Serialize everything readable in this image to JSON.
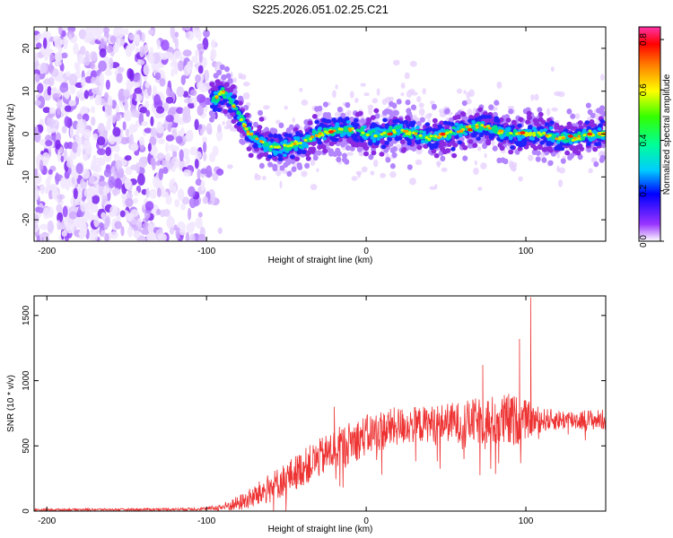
{
  "figure_title": "S225.2026.051.02.25.C21",
  "chart_data": [
    {
      "type": "heatmap",
      "title": "S225.2026.051.02.25.C21",
      "xlabel": "Height of straight line (km)",
      "ylabel": "Frequency (Hz)",
      "xlim": [
        -208,
        150
      ],
      "ylim": [
        -25,
        25
      ],
      "xticks": [
        -200,
        -100,
        0,
        100
      ],
      "xtick_labels": [
        "-200",
        "-100",
        "0",
        "100"
      ],
      "yticks": [
        -20,
        -10,
        0,
        10,
        20
      ],
      "ytick_labels": [
        "-20",
        "-10",
        "0",
        "10",
        "20"
      ],
      "grid": false,
      "colorbar": {
        "label": "Normalized spectral amplitude",
        "range": [
          0,
          0.85
        ],
        "ticks": [
          0.0,
          0.2,
          0.4,
          0.6,
          0.8
        ],
        "tick_labels": [
          "0.0",
          "0.2",
          "0.4",
          "0.6",
          "0.8"
        ],
        "colormap": [
          "#ffffff",
          "#9933ff",
          "#0000ff",
          "#00ffff",
          "#00ff00",
          "#ffff00",
          "#ff8000",
          "#ff0000",
          "#ff33aa"
        ]
      },
      "ridge": {
        "x": [
          -95,
          -90,
          -85,
          -80,
          -75,
          -70,
          -60,
          -50,
          -40,
          -30,
          -20,
          -10,
          0,
          10,
          20,
          30,
          40,
          50,
          60,
          70,
          80,
          90,
          100,
          110,
          120,
          130,
          140,
          150
        ],
        "freq": [
          8,
          10,
          8,
          5,
          1,
          -1,
          -3,
          -3,
          -2,
          0,
          1,
          1,
          0,
          0,
          1,
          0,
          -1,
          0,
          1,
          2,
          1,
          0,
          0,
          0,
          -1,
          -1,
          0,
          0
        ]
      },
      "peak_amplitude": 0.85
    },
    {
      "type": "line",
      "xlabel": "Height of straight line (km)",
      "ylabel": "SNR (10 * v/v)",
      "xlim": [
        -208,
        150
      ],
      "ylim": [
        0,
        1650
      ],
      "xticks": [
        -200,
        -100,
        0,
        100
      ],
      "xtick_labels": [
        "-200",
        "-100",
        "0",
        "100"
      ],
      "yticks": [
        0,
        500,
        1000,
        1500
      ],
      "ytick_labels": [
        "0",
        "500",
        "1000",
        "1500"
      ],
      "grid": false,
      "series_color": "#ee3333",
      "envelope": {
        "x": [
          -208,
          -180,
          -150,
          -120,
          -100,
          -90,
          -80,
          -70,
          -60,
          -50,
          -40,
          -30,
          -20,
          -10,
          0,
          10,
          20,
          30,
          40,
          50,
          60,
          70,
          80,
          90,
          100,
          110,
          120,
          130,
          140,
          150
        ],
        "mean": [
          10,
          12,
          12,
          14,
          18,
          30,
          60,
          110,
          180,
          250,
          330,
          400,
          470,
          530,
          580,
          620,
          650,
          660,
          670,
          680,
          680,
          690,
          690,
          690,
          700,
          700,
          700,
          700,
          700,
          700
        ],
        "spread": [
          8,
          8,
          8,
          10,
          12,
          30,
          60,
          90,
          120,
          130,
          140,
          150,
          160,
          160,
          160,
          160,
          150,
          140,
          140,
          150,
          160,
          180,
          200,
          220,
          150,
          90,
          80,
          80,
          80,
          80
        ]
      },
      "spikes": [
        {
          "x": 103,
          "y": 1640
        },
        {
          "x": 96,
          "y": 1320
        },
        {
          "x": 73,
          "y": 1120
        },
        {
          "x": -20,
          "y": 800
        }
      ]
    }
  ]
}
